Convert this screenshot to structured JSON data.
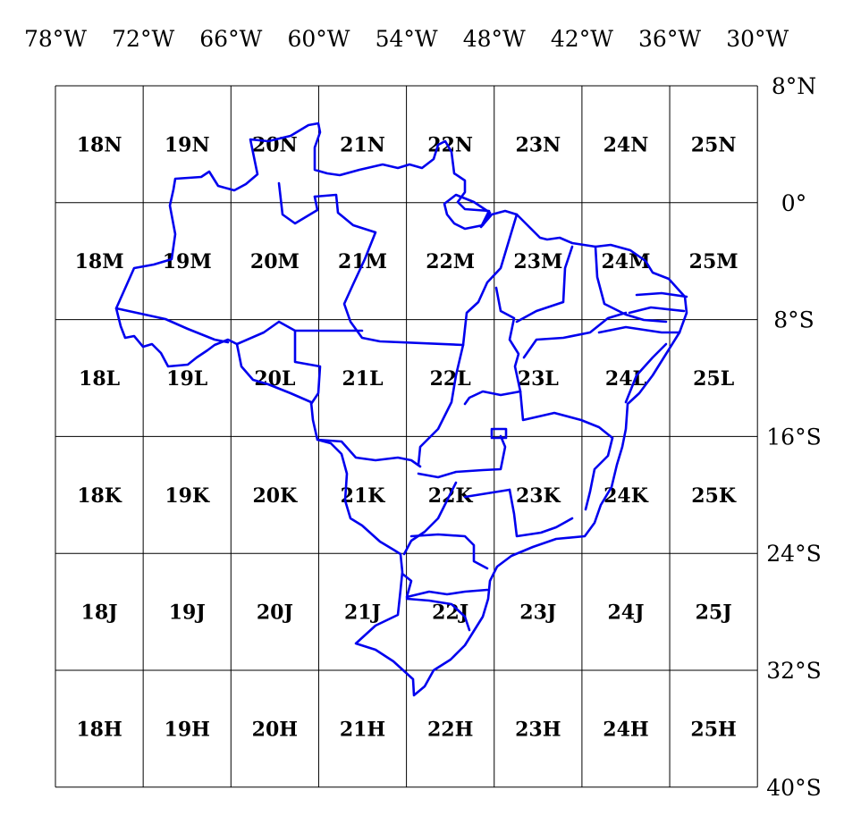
{
  "map": {
    "longitude_labels": [
      "78°W",
      "72°W",
      "66°W",
      "60°W",
      "54°W",
      "48°W",
      "42°W",
      "36°W",
      "30°W"
    ],
    "latitude_labels": [
      "8°N",
      "0°",
      "8°S",
      "16°S",
      "24°S",
      "32°S",
      "40°S"
    ],
    "zone_rows": [
      [
        "18N",
        "19N",
        "20N",
        "21N",
        "22N",
        "23N",
        "24N",
        "25N"
      ],
      [
        "18M",
        "19M",
        "20M",
        "21M",
        "22M",
        "23M",
        "24M",
        "25M"
      ],
      [
        "18L",
        "19L",
        "20L",
        "21L",
        "22L",
        "23L",
        "24L",
        "25L"
      ],
      [
        "18K",
        "19K",
        "20K",
        "21K",
        "22K",
        "23K",
        "24K",
        "25K"
      ],
      [
        "18J",
        "19J",
        "20J",
        "21J",
        "22J",
        "23J",
        "24J",
        "25J"
      ],
      [
        "18H",
        "19H",
        "20H",
        "21H",
        "22H",
        "23H",
        "24H",
        "25H"
      ]
    ],
    "border_color": "#0000ee",
    "grid_color": "#000000"
  }
}
